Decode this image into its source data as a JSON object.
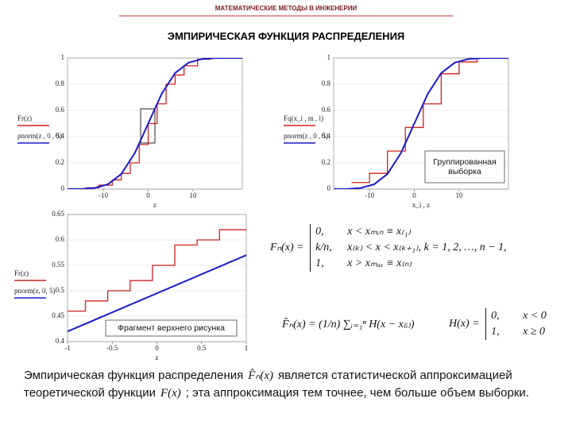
{
  "header": "МАТЕМАТИЧЕСКИЕ МЕТОДЫ В ИНЖЕНЕРИИ",
  "title": "ЭМПИРИЧЕСКАЯ ФУНКЦИЯ РАСПРЕДЕЛЕНИЯ",
  "chart_data": [
    {
      "type": "line",
      "xlabel": "z",
      "xlim": [
        -18,
        21
      ],
      "xticks": [
        -10,
        0,
        10
      ],
      "ylim": [
        0,
        1
      ],
      "yticks": [
        0,
        0.2,
        0.4,
        0.6,
        0.8,
        1
      ],
      "series": [
        {
          "name": "Fr(z)",
          "color": "#d02020",
          "x": [
            -14,
            -11,
            -11,
            -8,
            -8,
            -6,
            -6,
            -4,
            -4,
            -2,
            -2,
            0,
            0,
            2,
            2,
            4,
            4,
            6,
            6,
            8,
            8,
            11,
            11,
            14
          ],
          "values": [
            0.01,
            0.01,
            0.03,
            0.03,
            0.07,
            0.07,
            0.12,
            0.12,
            0.2,
            0.2,
            0.34,
            0.34,
            0.5,
            0.5,
            0.65,
            0.65,
            0.8,
            0.8,
            0.87,
            0.87,
            0.94,
            0.94,
            0.99,
            0.99
          ]
        },
        {
          "name": "pnorm(z , 0 , 5)",
          "color": "#1a1acc",
          "x": [
            -18,
            -15,
            -12,
            -9,
            -6,
            -3,
            0,
            3,
            6,
            9,
            12,
            15,
            18,
            21
          ],
          "values": [
            0,
            0.001,
            0.008,
            0.036,
            0.115,
            0.274,
            0.5,
            0.726,
            0.885,
            0.964,
            0.992,
            0.999,
            1,
            1
          ]
        }
      ]
    },
    {
      "type": "line",
      "xlabel": "x_i , z",
      "annotation": "Группированная выборка",
      "xlim": [
        -18,
        21
      ],
      "xticks": [
        -10,
        0,
        10
      ],
      "ylim": [
        0,
        1
      ],
      "yticks": [
        0,
        0.2,
        0.4,
        0.6,
        0.8,
        1
      ],
      "series": [
        {
          "name": "Fq(x_i , m , i)",
          "color": "#d02020",
          "x": [
            -14,
            -10,
            -10,
            -6,
            -6,
            -2,
            -2,
            2,
            2,
            6,
            6,
            10,
            10,
            14,
            14,
            18
          ],
          "values": [
            0.05,
            0.05,
            0.12,
            0.12,
            0.29,
            0.29,
            0.47,
            0.47,
            0.65,
            0.65,
            0.88,
            0.88,
            0.97,
            0.97,
            1,
            1
          ]
        },
        {
          "name": "pnorm(z , 0 , 5)",
          "color": "#1a1acc",
          "x": [
            -18,
            -15,
            -12,
            -9,
            -6,
            -3,
            0,
            3,
            6,
            9,
            12,
            15,
            18,
            21
          ],
          "values": [
            0,
            0.001,
            0.008,
            0.036,
            0.115,
            0.274,
            0.5,
            0.726,
            0.885,
            0.964,
            0.992,
            0.999,
            1,
            1
          ]
        }
      ]
    },
    {
      "type": "line",
      "xlabel": "z",
      "annotation": "Фрагмент верхнего рисунка",
      "xlim": [
        -1,
        1
      ],
      "xticks": [
        -1,
        -0.5,
        0,
        0.5,
        1
      ],
      "ylim": [
        0.4,
        0.65
      ],
      "yticks": [
        0.4,
        0.45,
        0.5,
        0.55,
        0.6,
        0.65
      ],
      "series": [
        {
          "name": "Fr(z)",
          "color": "#d02020",
          "x": [
            -1,
            -0.8,
            -0.8,
            -0.55,
            -0.55,
            -0.3,
            -0.3,
            -0.05,
            -0.05,
            0.2,
            0.2,
            0.45,
            0.45,
            0.7,
            0.7,
            1
          ],
          "values": [
            0.46,
            0.46,
            0.48,
            0.48,
            0.5,
            0.5,
            0.52,
            0.52,
            0.55,
            0.55,
            0.59,
            0.59,
            0.6,
            0.6,
            0.62,
            0.62
          ]
        },
        {
          "name": "pnorm(z, 0, 5)",
          "color": "#1a1acc",
          "x": [
            -1,
            1
          ],
          "values": [
            0.42,
            0.57
          ]
        }
      ]
    }
  ],
  "formula_piecewise": {
    "lhs": "Fₙ(x) =",
    "cases": [
      [
        "0,",
        "x < xₘᵢₙ ≡ x₍₁₎"
      ],
      [
        "k/n,",
        "x₍ₖ₎ < x < x₍ₖ₊₁₎,    k = 1, 2, …, n − 1,"
      ],
      [
        "1,",
        "x > xₘₐₓ ≡ x₍ₙ₎"
      ]
    ]
  },
  "formula_sum": "F̂ₙ(x) = (1/n) ∑ᵢ₌₁ⁿ H(x − x₍ᵢ₎)",
  "formula_heaviside": {
    "lhs": "H(x) =",
    "cases": [
      [
        "0,",
        "x < 0"
      ],
      [
        "1,",
        "x ≥ 0"
      ]
    ]
  },
  "caption": {
    "part1": "Эмпирическая функция распределения",
    "f1": "F̂ₙ(x)",
    "part2": "является статистической аппроксимацией теоретической функции",
    "f2": "F(x)",
    "part3": "; эта аппроксимация тем точнее, чем больше объем выборки."
  }
}
